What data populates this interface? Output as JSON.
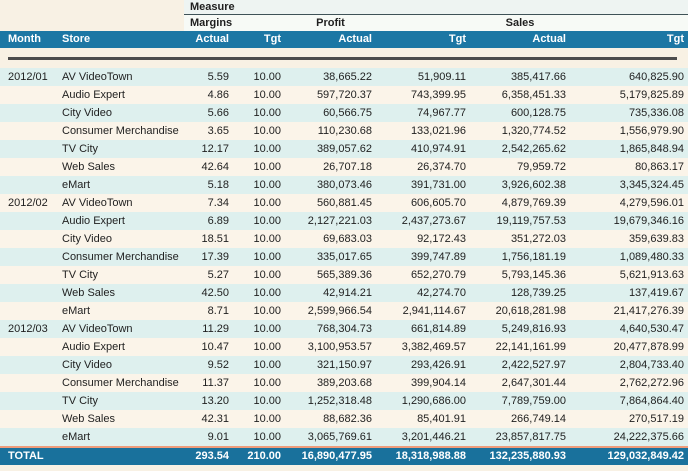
{
  "table": {
    "measure_label": "Measure",
    "column_headers": {
      "month": "Month",
      "store": "Store",
      "actual": "Actual",
      "tgt": "Tgt"
    },
    "measure_groups": [
      "Margins",
      "Profit",
      "Sales"
    ],
    "rows": [
      {
        "month": "2012/01",
        "store": "AV VideoTown",
        "margins_actual": "5.59",
        "margins_tgt": "10.00",
        "profit_actual": "38,665.22",
        "profit_tgt": "51,909.11",
        "sales_actual": "385,417.66",
        "sales_tgt": "640,825.90"
      },
      {
        "month": "",
        "store": "Audio Expert",
        "margins_actual": "4.86",
        "margins_tgt": "10.00",
        "profit_actual": "597,720.37",
        "profit_tgt": "743,399.95",
        "sales_actual": "6,358,451.33",
        "sales_tgt": "5,179,825.89"
      },
      {
        "month": "",
        "store": "City Video",
        "margins_actual": "5.66",
        "margins_tgt": "10.00",
        "profit_actual": "60,566.75",
        "profit_tgt": "74,967.77",
        "sales_actual": "600,128.75",
        "sales_tgt": "735,336.08"
      },
      {
        "month": "",
        "store": "Consumer Merchandise",
        "margins_actual": "3.65",
        "margins_tgt": "10.00",
        "profit_actual": "110,230.68",
        "profit_tgt": "133,021.96",
        "sales_actual": "1,320,774.52",
        "sales_tgt": "1,556,979.90"
      },
      {
        "month": "",
        "store": "TV City",
        "margins_actual": "12.17",
        "margins_tgt": "10.00",
        "profit_actual": "389,057.62",
        "profit_tgt": "410,974.91",
        "sales_actual": "2,542,265.62",
        "sales_tgt": "1,865,848.94"
      },
      {
        "month": "",
        "store": "Web Sales",
        "margins_actual": "42.64",
        "margins_tgt": "10.00",
        "profit_actual": "26,707.18",
        "profit_tgt": "26,374.70",
        "sales_actual": "79,959.72",
        "sales_tgt": "80,863.17"
      },
      {
        "month": "",
        "store": "eMart",
        "margins_actual": "5.18",
        "margins_tgt": "10.00",
        "profit_actual": "380,073.46",
        "profit_tgt": "391,731.00",
        "sales_actual": "3,926,602.38",
        "sales_tgt": "3,345,324.45"
      },
      {
        "month": "2012/02",
        "store": "AV VideoTown",
        "margins_actual": "7.34",
        "margins_tgt": "10.00",
        "profit_actual": "560,881.45",
        "profit_tgt": "606,605.70",
        "sales_actual": "4,879,769.39",
        "sales_tgt": "4,279,596.01"
      },
      {
        "month": "",
        "store": "Audio Expert",
        "margins_actual": "6.89",
        "margins_tgt": "10.00",
        "profit_actual": "2,127,221.03",
        "profit_tgt": "2,437,273.67",
        "sales_actual": "19,119,757.53",
        "sales_tgt": "19,679,346.16"
      },
      {
        "month": "",
        "store": "City Video",
        "margins_actual": "18.51",
        "margins_tgt": "10.00",
        "profit_actual": "69,683.03",
        "profit_tgt": "92,172.43",
        "sales_actual": "351,272.03",
        "sales_tgt": "359,639.83"
      },
      {
        "month": "",
        "store": "Consumer Merchandise",
        "margins_actual": "17.39",
        "margins_tgt": "10.00",
        "profit_actual": "335,017.65",
        "profit_tgt": "399,747.89",
        "sales_actual": "1,756,181.19",
        "sales_tgt": "1,089,480.33"
      },
      {
        "month": "",
        "store": "TV City",
        "margins_actual": "5.27",
        "margins_tgt": "10.00",
        "profit_actual": "565,389.36",
        "profit_tgt": "652,270.79",
        "sales_actual": "5,793,145.36",
        "sales_tgt": "5,621,913.63"
      },
      {
        "month": "",
        "store": "Web Sales",
        "margins_actual": "42.50",
        "margins_tgt": "10.00",
        "profit_actual": "42,914.21",
        "profit_tgt": "42,274.70",
        "sales_actual": "128,739.25",
        "sales_tgt": "137,419.67"
      },
      {
        "month": "",
        "store": "eMart",
        "margins_actual": "8.71",
        "margins_tgt": "10.00",
        "profit_actual": "2,599,966.54",
        "profit_tgt": "2,941,114.67",
        "sales_actual": "20,618,281.98",
        "sales_tgt": "21,417,276.39"
      },
      {
        "month": "2012/03",
        "store": "AV VideoTown",
        "margins_actual": "11.29",
        "margins_tgt": "10.00",
        "profit_actual": "768,304.73",
        "profit_tgt": "661,814.89",
        "sales_actual": "5,249,816.93",
        "sales_tgt": "4,640,530.47"
      },
      {
        "month": "",
        "store": "Audio Expert",
        "margins_actual": "10.47",
        "margins_tgt": "10.00",
        "profit_actual": "3,100,953.57",
        "profit_tgt": "3,382,469.57",
        "sales_actual": "22,141,161.99",
        "sales_tgt": "20,477,878.99"
      },
      {
        "month": "",
        "store": "City Video",
        "margins_actual": "9.52",
        "margins_tgt": "10.00",
        "profit_actual": "321,150.97",
        "profit_tgt": "293,426.91",
        "sales_actual": "2,422,527.97",
        "sales_tgt": "2,804,733.40"
      },
      {
        "month": "",
        "store": "Consumer Merchandise",
        "margins_actual": "11.37",
        "margins_tgt": "10.00",
        "profit_actual": "389,203.68",
        "profit_tgt": "399,904.14",
        "sales_actual": "2,647,301.44",
        "sales_tgt": "2,762,272.96"
      },
      {
        "month": "",
        "store": "TV City",
        "margins_actual": "13.20",
        "margins_tgt": "10.00",
        "profit_actual": "1,252,318.48",
        "profit_tgt": "1,290,686.00",
        "sales_actual": "7,789,759.00",
        "sales_tgt": "7,864,864.40"
      },
      {
        "month": "",
        "store": "Web Sales",
        "margins_actual": "42.31",
        "margins_tgt": "10.00",
        "profit_actual": "88,682.36",
        "profit_tgt": "85,401.91",
        "sales_actual": "266,749.14",
        "sales_tgt": "270,517.19"
      },
      {
        "month": "",
        "store": "eMart",
        "margins_actual": "9.01",
        "margins_tgt": "10.00",
        "profit_actual": "3,065,769.61",
        "profit_tgt": "3,201,446.21",
        "sales_actual": "23,857,817.75",
        "sales_tgt": "24,222,375.66"
      }
    ],
    "total": {
      "label": "TOTAL",
      "margins_actual": "293.54",
      "margins_tgt": "210.00",
      "profit_actual": "16,890,477.95",
      "profit_tgt": "18,318,988.88",
      "sales_actual": "132,235,880.93",
      "sales_tgt": "129,032,849.42"
    }
  },
  "colors": {
    "header_teal": "#1c77a4",
    "total_teal": "#19719c",
    "stripe_blue": "#def0ee",
    "stripe_cream": "#fbf4e9",
    "page_cream": "#f8f1e4",
    "total_divider_orange": "#ee9c7b",
    "header_rule_gray": "#4c4c4c"
  }
}
